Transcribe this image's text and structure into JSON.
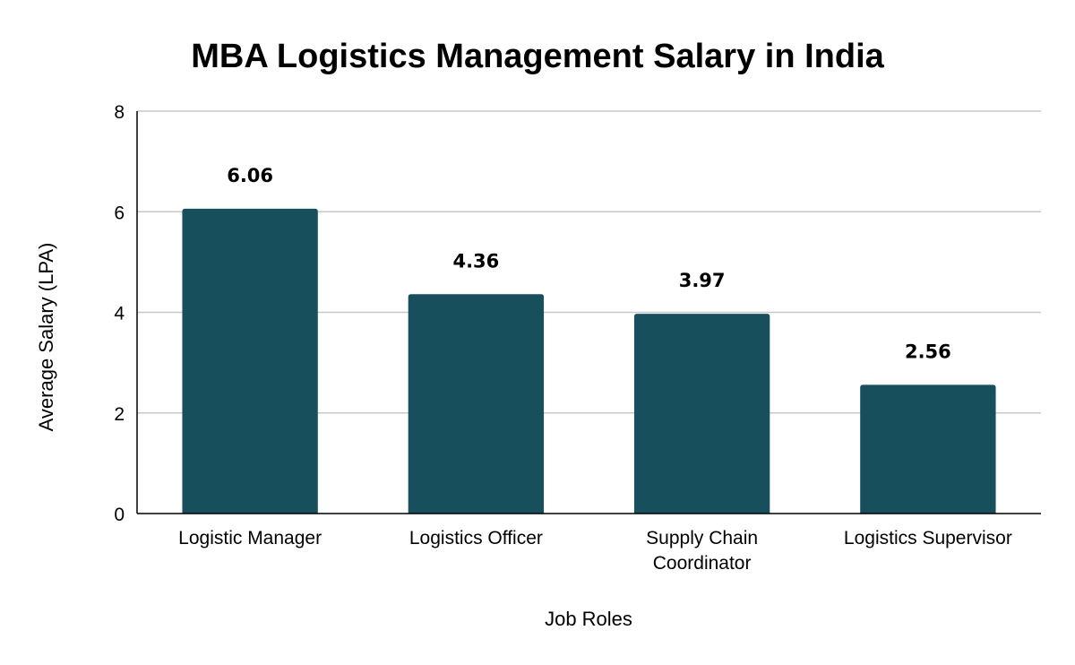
{
  "chart_data": {
    "type": "bar",
    "title": "MBA Logistics Management Salary in India",
    "xlabel": "Job Roles",
    "ylabel": "Average Salary (LPA)",
    "categories": [
      [
        "Logistic Manager"
      ],
      [
        "Logistics Officer"
      ],
      [
        "Supply Chain",
        "Coordinator"
      ],
      [
        "Logistics Supervisor"
      ]
    ],
    "values": [
      6.06,
      4.36,
      3.97,
      2.56
    ],
    "value_labels": [
      "6.06",
      "4.36",
      "3.97",
      "2.56"
    ],
    "ylim": [
      0,
      8
    ],
    "yticks": [
      0,
      2,
      4,
      6,
      8
    ],
    "grid": true,
    "bar_color": "#174f5c"
  }
}
